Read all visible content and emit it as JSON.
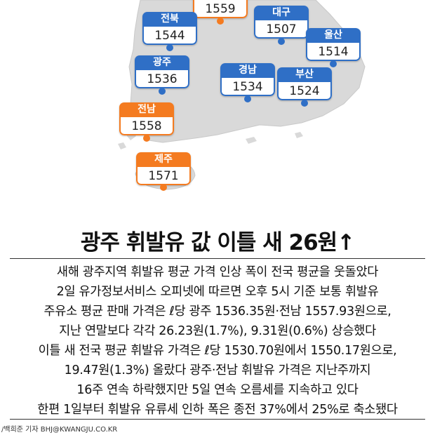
{
  "colors": {
    "blue": "#2f6fc6",
    "orange": "#f47b20",
    "land": "#d9d9d9"
  },
  "map": {
    "regions": [
      {
        "id": "top",
        "name": "",
        "value": "1559",
        "color": "orange"
      },
      {
        "id": "jeonbuk",
        "name": "전북",
        "value": "1544",
        "color": "blue"
      },
      {
        "id": "daegu",
        "name": "대구",
        "value": "1507",
        "color": "blue"
      },
      {
        "id": "ulsan",
        "name": "울산",
        "value": "1514",
        "color": "blue"
      },
      {
        "id": "gwangju",
        "name": "광주",
        "value": "1536",
        "color": "blue"
      },
      {
        "id": "gyeongnam",
        "name": "경남",
        "value": "1534",
        "color": "blue"
      },
      {
        "id": "busan",
        "name": "부산",
        "value": "1524",
        "color": "blue"
      },
      {
        "id": "jeonnam",
        "name": "전남",
        "value": "1558",
        "color": "orange"
      },
      {
        "id": "jeju",
        "name": "제주",
        "value": "1571",
        "color": "orange"
      }
    ]
  },
  "headline": "광주 휘발유 값 이틀 새 26원↑",
  "body_lines": [
    "새해 광주지역 휘발유 평균 가격 인상 폭이 전국 평균을 웃돌았다",
    "2일 유가정보서비스 오피넷에 따르면 오후 5시 기준 보통 휘발유",
    "주유소 평균 판매 가격은 ℓ당 광주 1536.35원·전남 1557.93원으로,",
    "지난 연말보다 각각 26.23원(1.7%), 9.31원(0.6%) 상승했다",
    "이틀 새 전국 평균 휘발유 가격은 ℓ당 1530.70원에서 1550.17원으로,",
    "19.47원(1.3%) 올랐다 광주·전남 휘발유 가격은 지난주까지",
    "16주 연속 하락했지만 5일 연속 오름세를 지속하고 있다",
    "한편 1일부터 휘발유 유류세 인하 폭은 종전 37%에서 25%로 축소됐다"
  ],
  "credit": "/백희준 기자 BHJ@KWANGJU.CO.KR"
}
